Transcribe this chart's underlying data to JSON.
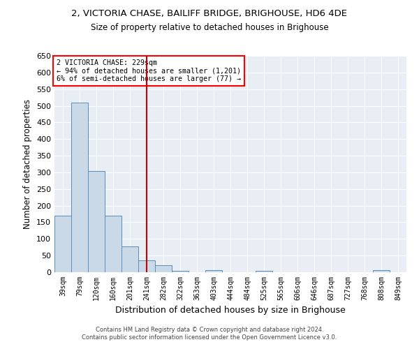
{
  "title": "2, VICTORIA CHASE, BAILIFF BRIDGE, BRIGHOUSE, HD6 4DE",
  "subtitle": "Size of property relative to detached houses in Brighouse",
  "xlabel": "Distribution of detached houses by size in Brighouse",
  "ylabel": "Number of detached properties",
  "bar_color": "#c9d9e8",
  "bar_edge_color": "#5b8db8",
  "background_color": "#e8eef4",
  "grid_color": "#ffffff",
  "bin_labels": [
    "39sqm",
    "79sqm",
    "120sqm",
    "160sqm",
    "201sqm",
    "241sqm",
    "282sqm",
    "322sqm",
    "363sqm",
    "403sqm",
    "444sqm",
    "484sqm",
    "525sqm",
    "565sqm",
    "606sqm",
    "646sqm",
    "687sqm",
    "727sqm",
    "768sqm",
    "808sqm",
    "849sqm"
  ],
  "bar_values": [
    170,
    510,
    303,
    170,
    77,
    35,
    22,
    5,
    0,
    7,
    0,
    0,
    5,
    0,
    0,
    0,
    0,
    0,
    0,
    6,
    0
  ],
  "vline_x": 5.0,
  "vline_color": "#cc0000",
  "ylim": [
    0,
    650
  ],
  "yticks": [
    0,
    50,
    100,
    150,
    200,
    250,
    300,
    350,
    400,
    450,
    500,
    550,
    600,
    650
  ],
  "annotation_title": "2 VICTORIA CHASE: 229sqm",
  "annotation_line1": "← 94% of detached houses are smaller (1,201)",
  "annotation_line2": "6% of semi-detached houses are larger (77) →",
  "footnote1": "Contains HM Land Registry data © Crown copyright and database right 2024.",
  "footnote2": "Contains public sector information licensed under the Open Government Licence v3.0."
}
